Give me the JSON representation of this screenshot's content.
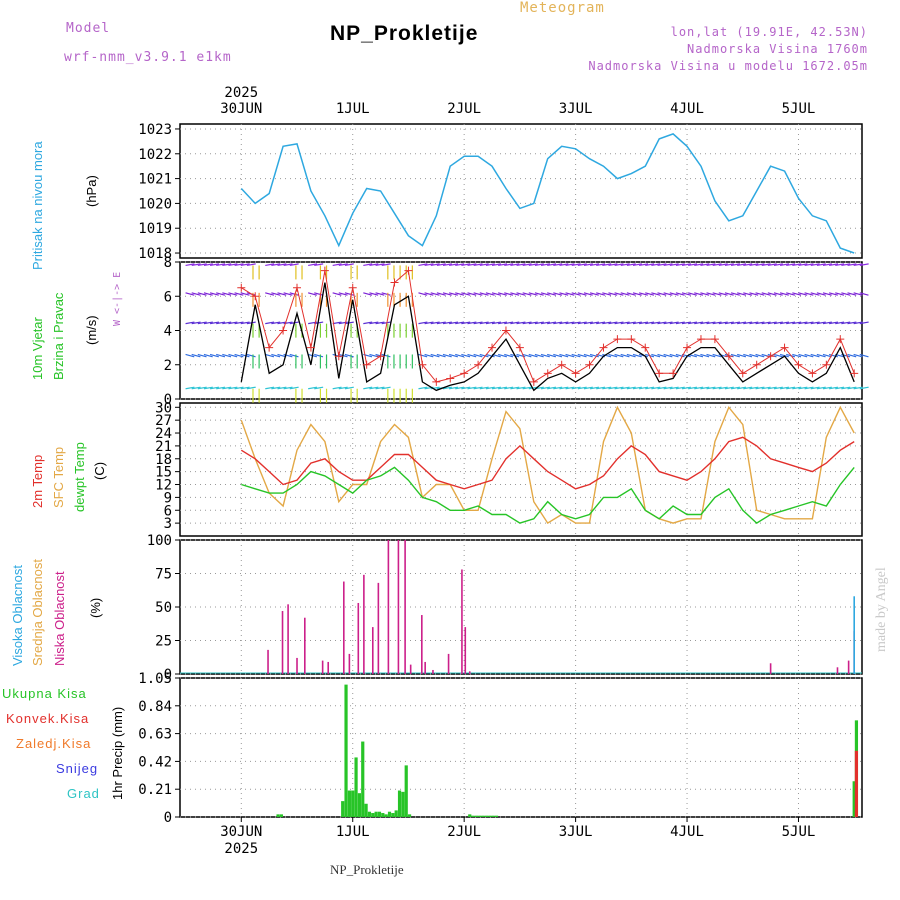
{
  "header": {
    "model_label": "Model",
    "model_name": "wrf-nmm_v3.9.1 e1km",
    "subtitle": "Meteogram",
    "title": "NP_Prokletije",
    "lonlat": "lon,lat (19.91E, 42.53N)",
    "altitude": "Nadmorska Visina 1760m",
    "model_altitude": "Nadmorska Visina u modelu 1672.05m"
  },
  "footer": {
    "station": "NP_Prokletije",
    "credit": "made by Angel"
  },
  "colors": {
    "pressure": "#2ea8e0",
    "wind_speed": "#000000",
    "gust": "#e2302c",
    "t2m": "#e2302c",
    "sfc": "#e3a846",
    "dewpt": "#27c427",
    "cloud": "#cc1f8a",
    "precip": "#27c427",
    "frame": "#000000"
  },
  "chart_data": [
    {
      "type": "line",
      "panel": "pressure",
      "ylabel": [
        "Pritisak na nivou mora",
        "(hPa)"
      ],
      "ylim": [
        1017.8,
        1023.2
      ],
      "yticks": [
        "1023",
        "1022",
        "1021",
        "1020",
        "1019",
        "1018"
      ],
      "x_day": [
        0,
        0.125,
        0.25,
        0.375,
        0.5,
        0.625,
        0.75,
        0.875,
        1,
        1.125,
        1.25,
        1.375,
        1.5,
        1.625,
        1.75,
        1.875,
        2,
        2.125,
        2.25,
        2.375,
        2.5,
        2.625,
        2.75,
        2.875,
        3,
        3.125,
        3.25,
        3.375,
        3.5,
        3.625,
        3.75,
        3.875,
        4,
        4.125,
        4.25,
        4.375,
        4.5,
        4.625,
        4.75,
        4.875,
        5,
        5.125,
        5.25,
        5.375,
        5.5
      ],
      "series": [
        {
          "values": [
            1020.6,
            1020.0,
            1020.4,
            1022.3,
            1022.4,
            1020.5,
            1019.5,
            1018.3,
            1019.6,
            1020.6,
            1020.5,
            1019.6,
            1018.7,
            1018.3,
            1019.5,
            1021.5,
            1021.9,
            1021.9,
            1021.5,
            1020.6,
            1019.8,
            1020.0,
            1021.8,
            1022.3,
            1022.2,
            1021.8,
            1021.5,
            1021.0,
            1021.2,
            1021.5,
            1022.6,
            1022.8,
            1022.3,
            1021.5,
            1020.1,
            1019.3,
            1019.5,
            1020.5,
            1021.5,
            1021.3,
            1020.2,
            1019.5,
            1019.3,
            1018.2,
            1018.0
          ]
        }
      ]
    },
    {
      "type": "line",
      "panel": "wind",
      "ylabel": [
        "10m Vjetar",
        "Brzina i Pravac",
        "(m/s)"
      ],
      "ylim": [
        0,
        8
      ],
      "yticks": [
        "8",
        "6",
        "4",
        "2",
        "0"
      ],
      "compass": "W <-|-> E",
      "x_day": [
        0,
        0.125,
        0.25,
        0.375,
        0.5,
        0.625,
        0.75,
        0.875,
        1,
        1.125,
        1.25,
        1.375,
        1.5,
        1.625,
        1.75,
        1.875,
        2,
        2.125,
        2.25,
        2.375,
        2.5,
        2.625,
        2.75,
        2.875,
        3,
        3.125,
        3.25,
        3.375,
        3.5,
        3.625,
        3.75,
        3.875,
        4,
        4.125,
        4.25,
        4.375,
        4.5,
        4.625,
        4.75,
        4.875,
        5,
        5.125,
        5.25,
        5.375,
        5.5
      ],
      "series": [
        {
          "name": "speed",
          "values": [
            1.0,
            5.5,
            1.5,
            2.0,
            5.0,
            2.0,
            6.8,
            1.2,
            5.8,
            1.0,
            1.5,
            5.5,
            6.0,
            1.0,
            0.5,
            0.8,
            1.0,
            1.5,
            2.5,
            3.5,
            2.0,
            0.5,
            1.2,
            1.5,
            1.0,
            1.5,
            2.5,
            3.0,
            3.0,
            2.5,
            1.0,
            1.2,
            2.5,
            3.0,
            3.0,
            2.0,
            1.0,
            1.5,
            2.0,
            2.5,
            1.5,
            1.0,
            1.5,
            3.0,
            1.0
          ]
        },
        {
          "name": "gust",
          "values": [
            6.5,
            6.0,
            3.0,
            4.0,
            6.5,
            3.0,
            7.5,
            2.5,
            6.5,
            2.0,
            2.5,
            6.8,
            7.5,
            2.0,
            1.0,
            1.2,
            1.5,
            2.0,
            3.0,
            4.0,
            3.0,
            1.0,
            1.5,
            2.0,
            1.5,
            2.0,
            3.0,
            3.5,
            3.5,
            3.0,
            1.5,
            1.5,
            3.0,
            3.5,
            3.5,
            2.5,
            1.5,
            2.0,
            2.5,
            3.0,
            2.0,
            1.5,
            2.0,
            3.5,
            1.5
          ]
        }
      ]
    },
    {
      "type": "line",
      "panel": "temperature",
      "ylabel": [
        "2m Temp",
        "SFC Temp",
        "dewpt Temp",
        "(C)"
      ],
      "ylim": [
        0,
        31
      ],
      "yticks": [
        "30",
        "27",
        "24",
        "21",
        "18",
        "15",
        "12",
        "9",
        "6",
        "3"
      ],
      "x_day": [
        0,
        0.125,
        0.25,
        0.375,
        0.5,
        0.625,
        0.75,
        0.875,
        1,
        1.125,
        1.25,
        1.375,
        1.5,
        1.625,
        1.75,
        1.875,
        2,
        2.125,
        2.25,
        2.375,
        2.5,
        2.625,
        2.75,
        2.875,
        3,
        3.125,
        3.25,
        3.375,
        3.5,
        3.625,
        3.75,
        3.875,
        4,
        4.125,
        4.25,
        4.375,
        4.5,
        4.625,
        4.75,
        4.875,
        5,
        5.125,
        5.25,
        5.375,
        5.5
      ],
      "series": [
        {
          "name": "2m Temp",
          "values": [
            20,
            18,
            15,
            12,
            13,
            17,
            18,
            15,
            13,
            13,
            16,
            19,
            19,
            16,
            13,
            12,
            11,
            12,
            13,
            18,
            21,
            18,
            15,
            13,
            11,
            12,
            14,
            18,
            21,
            19,
            15,
            14,
            13,
            15,
            18,
            22,
            23,
            21,
            18,
            17,
            16,
            15,
            17,
            20,
            22
          ]
        },
        {
          "name": "SFC Temp",
          "values": [
            27,
            18,
            10,
            7,
            20,
            26,
            22,
            8,
            12,
            12,
            22,
            26,
            23,
            9,
            12,
            12,
            6,
            6,
            18,
            29,
            25,
            8,
            3,
            5,
            3,
            3,
            22,
            30,
            24,
            6,
            4,
            3,
            4,
            4,
            22,
            30,
            26,
            6,
            5,
            4,
            4,
            4,
            23,
            30,
            24
          ]
        },
        {
          "name": "dewpt Temp",
          "values": [
            12,
            11,
            10,
            10,
            12,
            15,
            14,
            12,
            10,
            13,
            14,
            16,
            13,
            9,
            8,
            6,
            6,
            7,
            5,
            5,
            3,
            4,
            8,
            5,
            4,
            5,
            9,
            9,
            11,
            6,
            4,
            7,
            5,
            5,
            9,
            11,
            6,
            3,
            5,
            6,
            7,
            8,
            7,
            12,
            16
          ]
        }
      ]
    },
    {
      "type": "bar",
      "panel": "clouds",
      "ylabel": [
        "Visoka Oblacnost",
        "Srednja Oblacnost",
        "Niska Oblacnost",
        "(%)"
      ],
      "ylim": [
        0,
        100
      ],
      "yticks": [
        "100",
        "75",
        "50",
        "25",
        "0"
      ],
      "series": [
        {
          "name": "Niska Oblacnost",
          "x_day": [
            0.24,
            0.37,
            0.42,
            0.5,
            0.57,
            0.73,
            0.78,
            0.92,
            0.97,
            1.05,
            1.1,
            1.18,
            1.23,
            1.32,
            1.41,
            1.47,
            1.52,
            1.62,
            1.65,
            1.72,
            1.86,
            1.98,
            2.01,
            2.05,
            4.75,
            5.35,
            5.45,
            5.5
          ],
          "values": [
            18,
            47,
            52,
            12,
            42,
            10,
            9,
            69,
            15,
            53,
            74,
            35,
            68,
            100,
            100,
            100,
            7,
            44,
            9,
            3,
            15,
            78,
            35,
            2,
            8,
            5,
            10,
            32
          ]
        },
        {
          "name": "Visoka Oblacnost",
          "x_day": [
            5.5
          ],
          "values": [
            58
          ]
        }
      ]
    },
    {
      "type": "bar",
      "panel": "precipitation",
      "ylabel": [
        "1hr Precip (mm)"
      ],
      "ylim": [
        0,
        1.05
      ],
      "yticks": [
        "1.05",
        "0.84",
        "0.63",
        "0.42",
        "0.21",
        "0"
      ],
      "legend": [
        "Ukupna Kisa",
        "Konvek.Kisa",
        "Zaledj.Kisa",
        "Snijeg",
        "Grad"
      ],
      "series": [
        {
          "name": "Ukupna Kisa",
          "x_day": [
            0.33,
            0.36,
            0.91,
            0.94,
            0.97,
            1.0,
            1.03,
            1.06,
            1.09,
            1.12,
            1.15,
            1.18,
            1.21,
            1.24,
            1.27,
            1.3,
            1.33,
            1.36,
            1.39,
            1.42,
            1.45,
            1.48,
            1.51,
            2.05,
            2.08,
            2.11,
            2.14,
            2.17,
            2.2,
            2.23,
            2.26,
            2.29,
            5.5,
            5.52
          ],
          "values": [
            0.02,
            0.02,
            0.12,
            1.0,
            0.2,
            0.2,
            0.45,
            0.18,
            0.57,
            0.1,
            0.04,
            0.03,
            0.04,
            0.04,
            0.03,
            0.02,
            0.04,
            0.03,
            0.05,
            0.2,
            0.19,
            0.39,
            0.02,
            0.02,
            0.01,
            0.01,
            0.01,
            0.01,
            0.01,
            0.01,
            0.01,
            0.01,
            0.27,
            0.73
          ]
        },
        {
          "name": "Konvek.Kisa",
          "x_day": [
            5.52
          ],
          "values": [
            0.5
          ]
        }
      ]
    }
  ],
  "x_axis": {
    "range_days": [
      -0.55,
      5.57
    ],
    "day_positions": [
      0,
      1,
      2,
      3,
      4,
      5
    ],
    "day_labels": [
      "30JUN",
      "1JUL",
      "2JUL",
      "3JUL",
      "4JUL",
      "5JUL"
    ],
    "year": "2025"
  }
}
